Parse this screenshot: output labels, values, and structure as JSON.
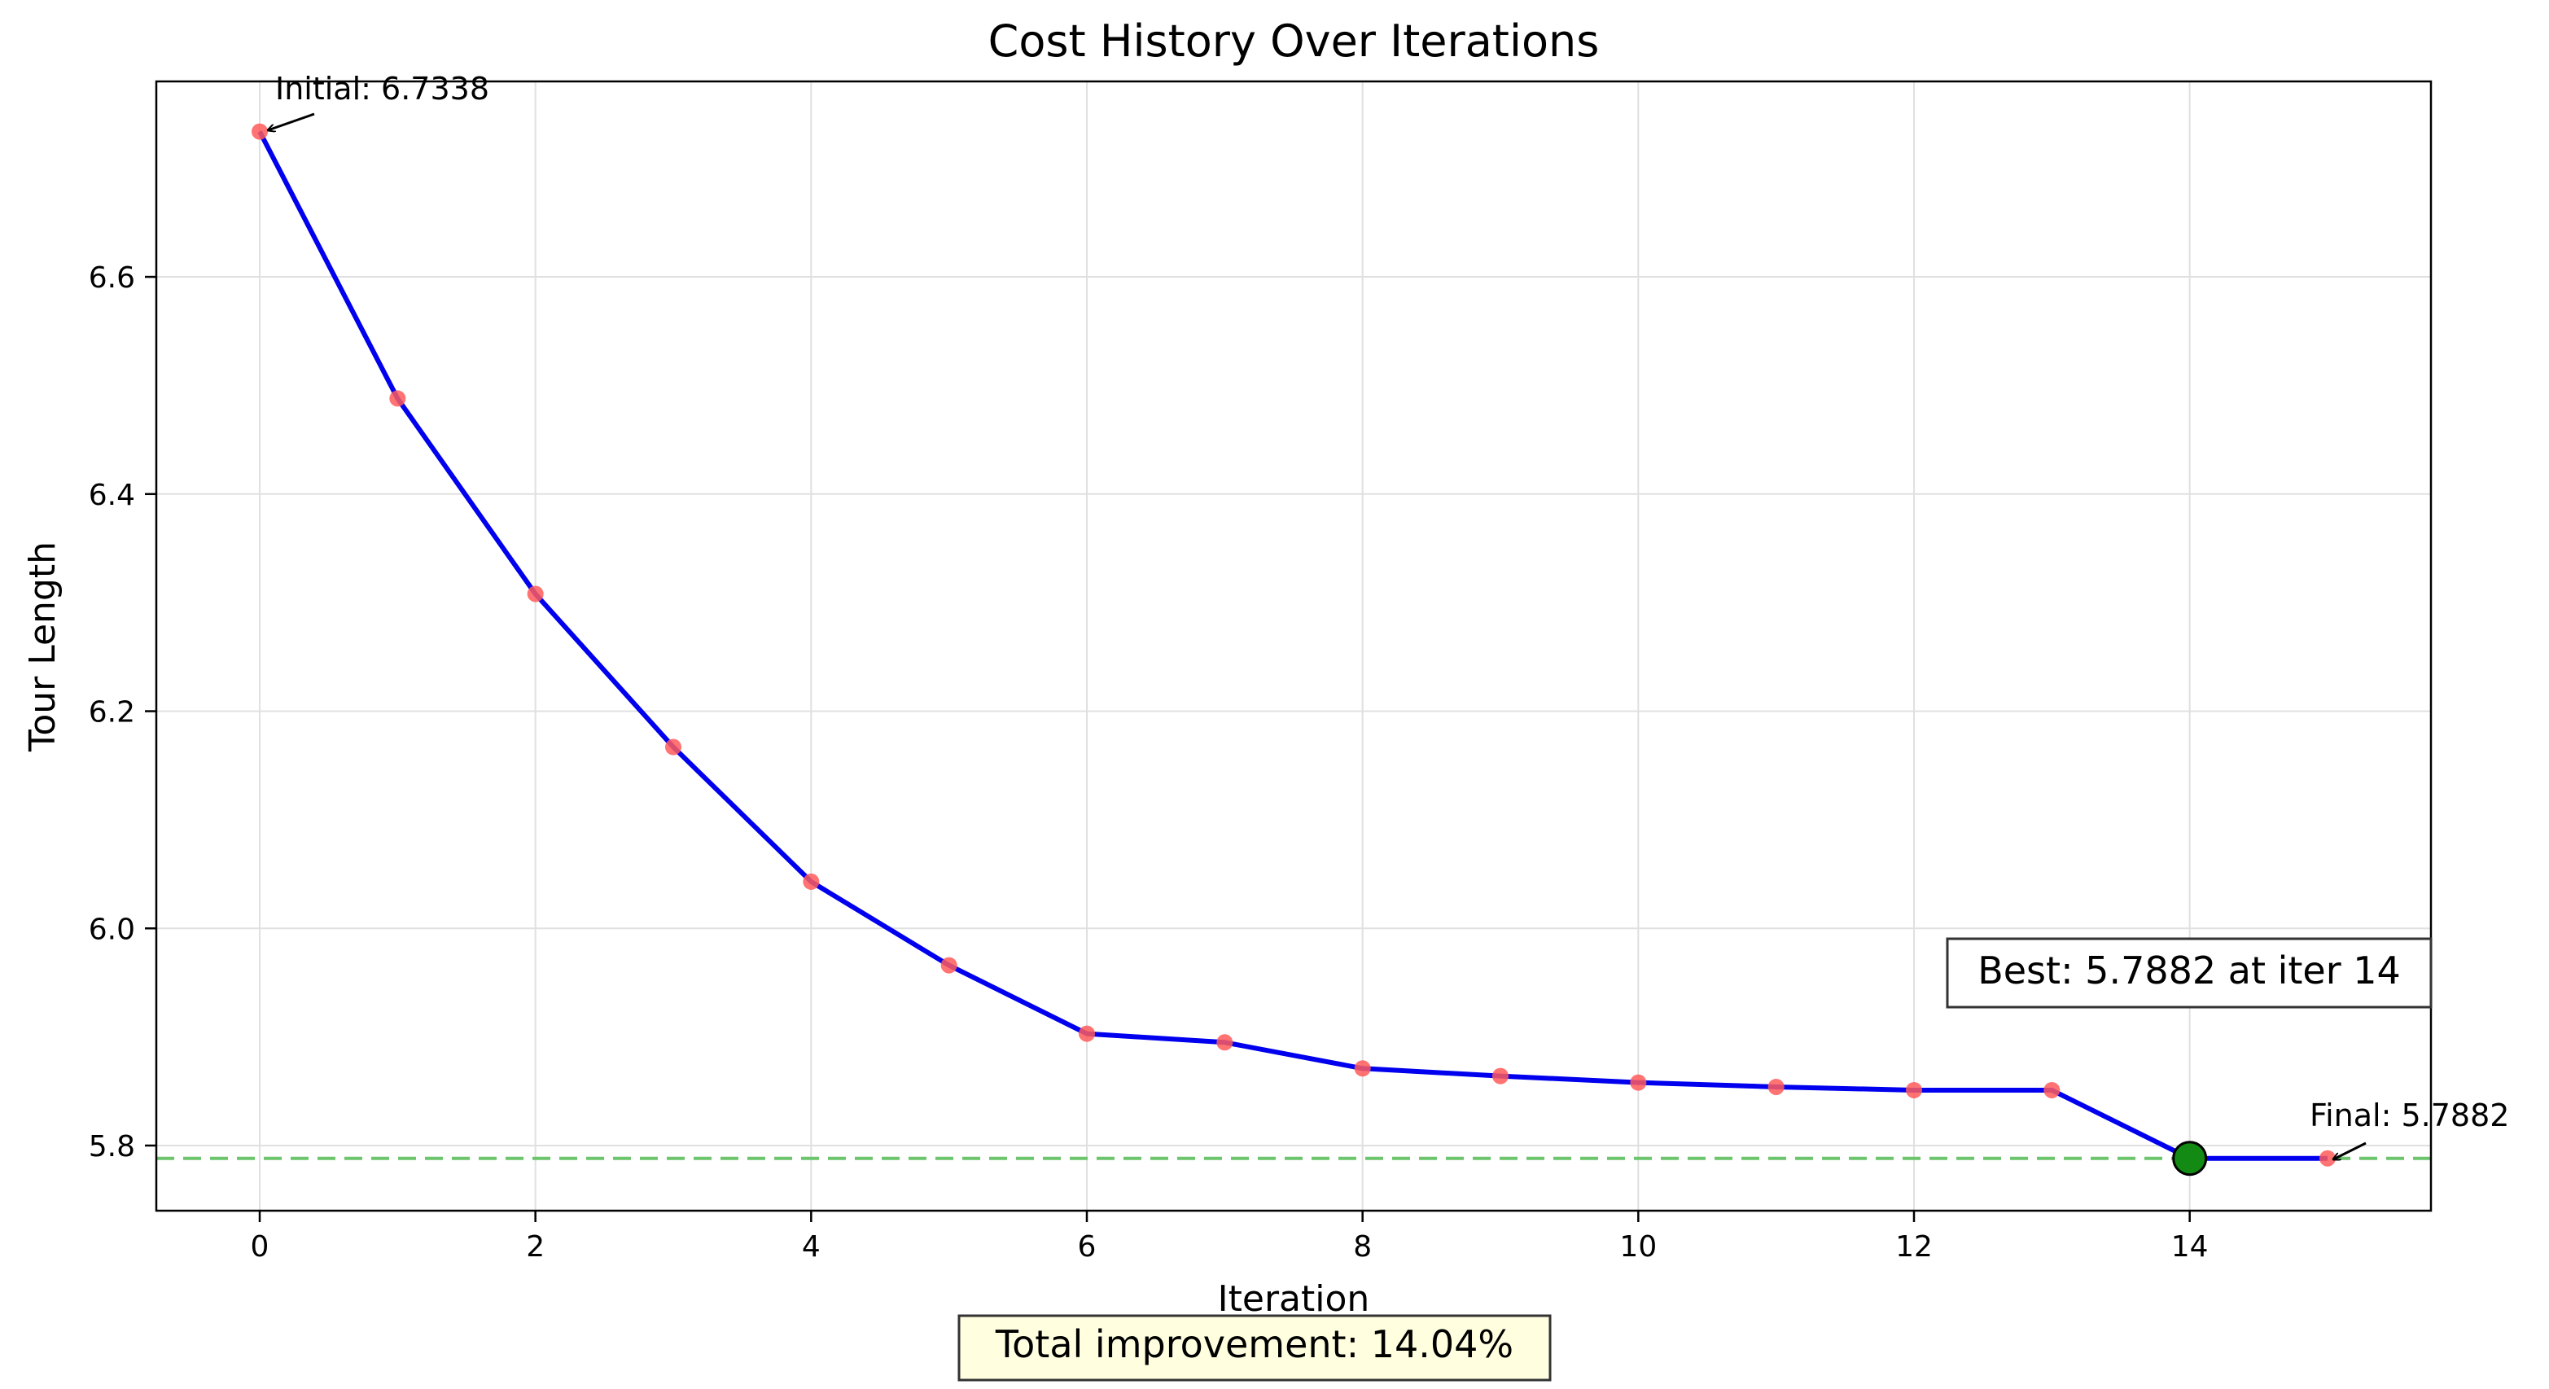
{
  "chart_data": {
    "type": "line",
    "title": "Cost History Over Iterations",
    "xlabel": "Iteration",
    "ylabel": "Tour Length",
    "xlim": [
      -0.75,
      15.75
    ],
    "ylim": [
      5.74,
      6.78
    ],
    "xticks": [
      0,
      2,
      4,
      6,
      8,
      10,
      12,
      14
    ],
    "xtick_labels": [
      "0",
      "2",
      "4",
      "6",
      "8",
      "10",
      "12",
      "14"
    ],
    "yticks": [
      5.8,
      6.0,
      6.2,
      6.4,
      6.6
    ],
    "ytick_labels": [
      "5.8",
      "6.0",
      "6.2",
      "6.4",
      "6.6"
    ],
    "grid": true,
    "series": [
      {
        "x": [
          0,
          1,
          2,
          3,
          4,
          5,
          6,
          7,
          8,
          9,
          10,
          11,
          12,
          13,
          14,
          15
        ],
        "values": [
          6.7338,
          6.488,
          6.308,
          6.167,
          6.043,
          5.966,
          5.903,
          5.895,
          5.871,
          5.864,
          5.858,
          5.854,
          5.851,
          5.851,
          5.7882,
          5.7882
        ],
        "line_color": "#0000ee",
        "marker_color": "#ff5a5a"
      }
    ],
    "best_point": {
      "x": 14,
      "y": 5.7882,
      "color": "#138a13"
    },
    "reference_line": {
      "y": 5.7882,
      "color": "#6cc46c",
      "style": "dashed"
    },
    "annotations": {
      "initial": "Initial: 6.7338",
      "final": "Final: 5.7882",
      "best_box": "Best: 5.7882 at iter 14",
      "improvement_box": "Total improvement: 14.04%"
    },
    "colors": {
      "grid": "#e0e0e0",
      "improvement_box_fill": "#ffffe0"
    }
  }
}
